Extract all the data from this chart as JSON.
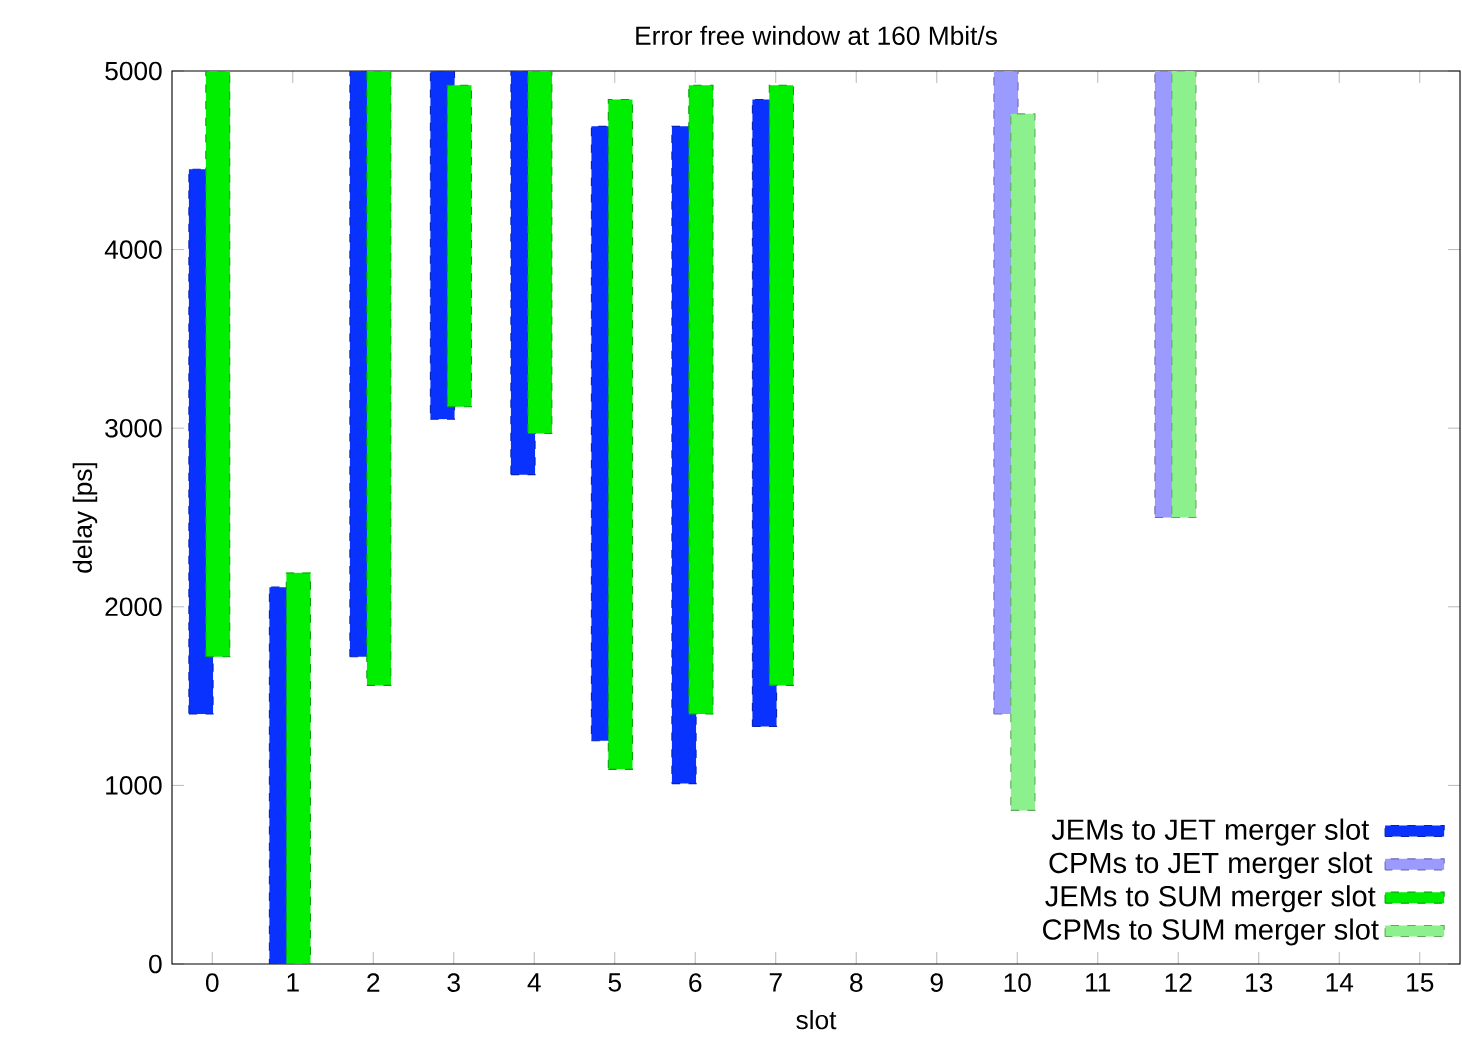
{
  "chart_data": {
    "type": "bar",
    "title": "Error free window at 160 Mbit/s",
    "xlabel": "slot",
    "ylabel": "delay [ps]",
    "categories": [
      "0",
      "1",
      "2",
      "3",
      "4",
      "5",
      "6",
      "7",
      "8",
      "9",
      "10",
      "11",
      "12",
      "13",
      "14",
      "15"
    ],
    "ylim": [
      0,
      5000
    ],
    "yticks": [
      0,
      1000,
      2000,
      3000,
      4000,
      5000
    ],
    "legend": "bottom right",
    "grid": false,
    "series": [
      {
        "name": "JEMs to JET merger slot",
        "color": "#0a32ff",
        "base": [
          1400,
          0,
          1720,
          3050,
          2740,
          1250,
          1010,
          1330,
          null,
          null,
          null,
          null,
          null,
          null,
          null,
          null
        ],
        "values": [
          3050,
          2110,
          3280,
          1950,
          2260,
          3440,
          3680,
          3510,
          null,
          null,
          null,
          null,
          null,
          null,
          null,
          null
        ]
      },
      {
        "name": "CPMs to JET merger slot",
        "color": "#9a9aff",
        "base": [
          null,
          null,
          null,
          null,
          null,
          null,
          null,
          null,
          null,
          null,
          1400,
          null,
          2500,
          null,
          null,
          null
        ],
        "values": [
          null,
          null,
          null,
          null,
          null,
          null,
          null,
          null,
          null,
          null,
          3600,
          null,
          2500,
          null,
          null,
          null
        ]
      },
      {
        "name": "JEMs to SUM merger slot",
        "color": "#00ee00",
        "base": [
          1720,
          0,
          1560,
          3120,
          2970,
          1090,
          1400,
          1560,
          null,
          null,
          null,
          null,
          null,
          null,
          null,
          null
        ],
        "values": [
          3280,
          2190,
          3440,
          1800,
          2030,
          3750,
          3520,
          3360,
          null,
          null,
          null,
          null,
          null,
          null,
          null,
          null
        ]
      },
      {
        "name": "CPMs to SUM merger slot",
        "color": "#8cf08c",
        "base": [
          null,
          null,
          null,
          null,
          null,
          null,
          null,
          null,
          null,
          null,
          860,
          null,
          2500,
          null,
          null,
          null
        ],
        "values": [
          null,
          null,
          null,
          null,
          null,
          null,
          null,
          null,
          null,
          null,
          3900,
          null,
          2500,
          null,
          null,
          null
        ]
      }
    ]
  }
}
